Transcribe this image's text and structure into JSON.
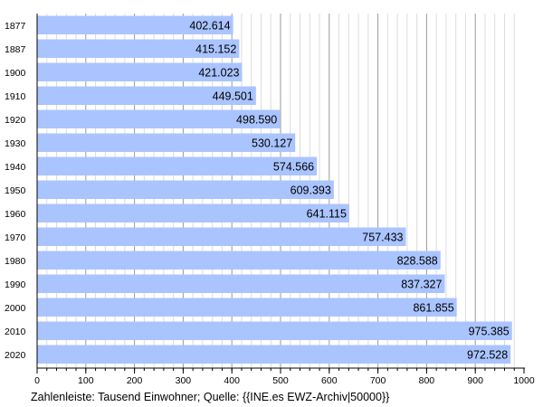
{
  "chart_data": {
    "type": "bar",
    "orientation": "horizontal",
    "categories": [
      "1877",
      "1887",
      "1900",
      "1910",
      "1920",
      "1930",
      "1940",
      "1950",
      "1960",
      "1970",
      "1980",
      "1990",
      "2000",
      "2010",
      "2020"
    ],
    "values": [
      402.614,
      415.152,
      421.023,
      449.501,
      498.59,
      530.127,
      574.566,
      609.393,
      641.115,
      757.433,
      828.588,
      837.327,
      861.855,
      975.385,
      972.528
    ],
    "value_labels": [
      "402.614",
      "415.152",
      "421.023",
      "449.501",
      "498.590",
      "530.127",
      "574.566",
      "609.393",
      "641.115",
      "757.433",
      "828.588",
      "837.327",
      "861.855",
      "975.385",
      "972.528"
    ],
    "xlim": [
      0,
      1000
    ],
    "x_ticks": [
      "0",
      "100",
      "200",
      "300",
      "400",
      "500",
      "600",
      "700",
      "800",
      "900",
      "1000"
    ],
    "grid": true,
    "legend": "none",
    "colors": {
      "bar": "#aac4ff",
      "grid_major": "#9a9a9a",
      "grid_minor": "#dcdcdc",
      "axis": "#000000"
    }
  },
  "caption": "Zahlenleiste: Tausend Einwohner; Quelle: {{INE.es EWZ-Archiv|50000}}"
}
